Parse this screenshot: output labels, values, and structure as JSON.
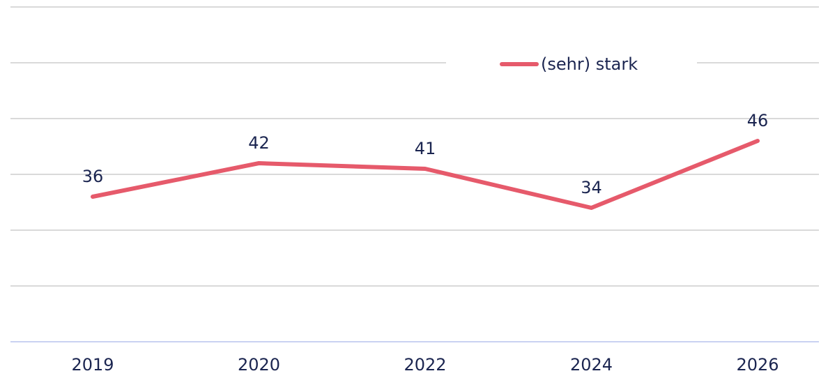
{
  "chart_data": {
    "type": "line",
    "categories": [
      "2019",
      "2020",
      "2022",
      "2024",
      "2026"
    ],
    "series": [
      {
        "name": "(sehr) stark",
        "color": "#e65a6b",
        "values": [
          36,
          42,
          41,
          34,
          46
        ]
      }
    ],
    "ylim": [
      10,
      70
    ],
    "yticks": [
      10,
      20,
      30,
      40,
      50,
      60,
      70
    ],
    "grid": true,
    "legend": "top"
  }
}
